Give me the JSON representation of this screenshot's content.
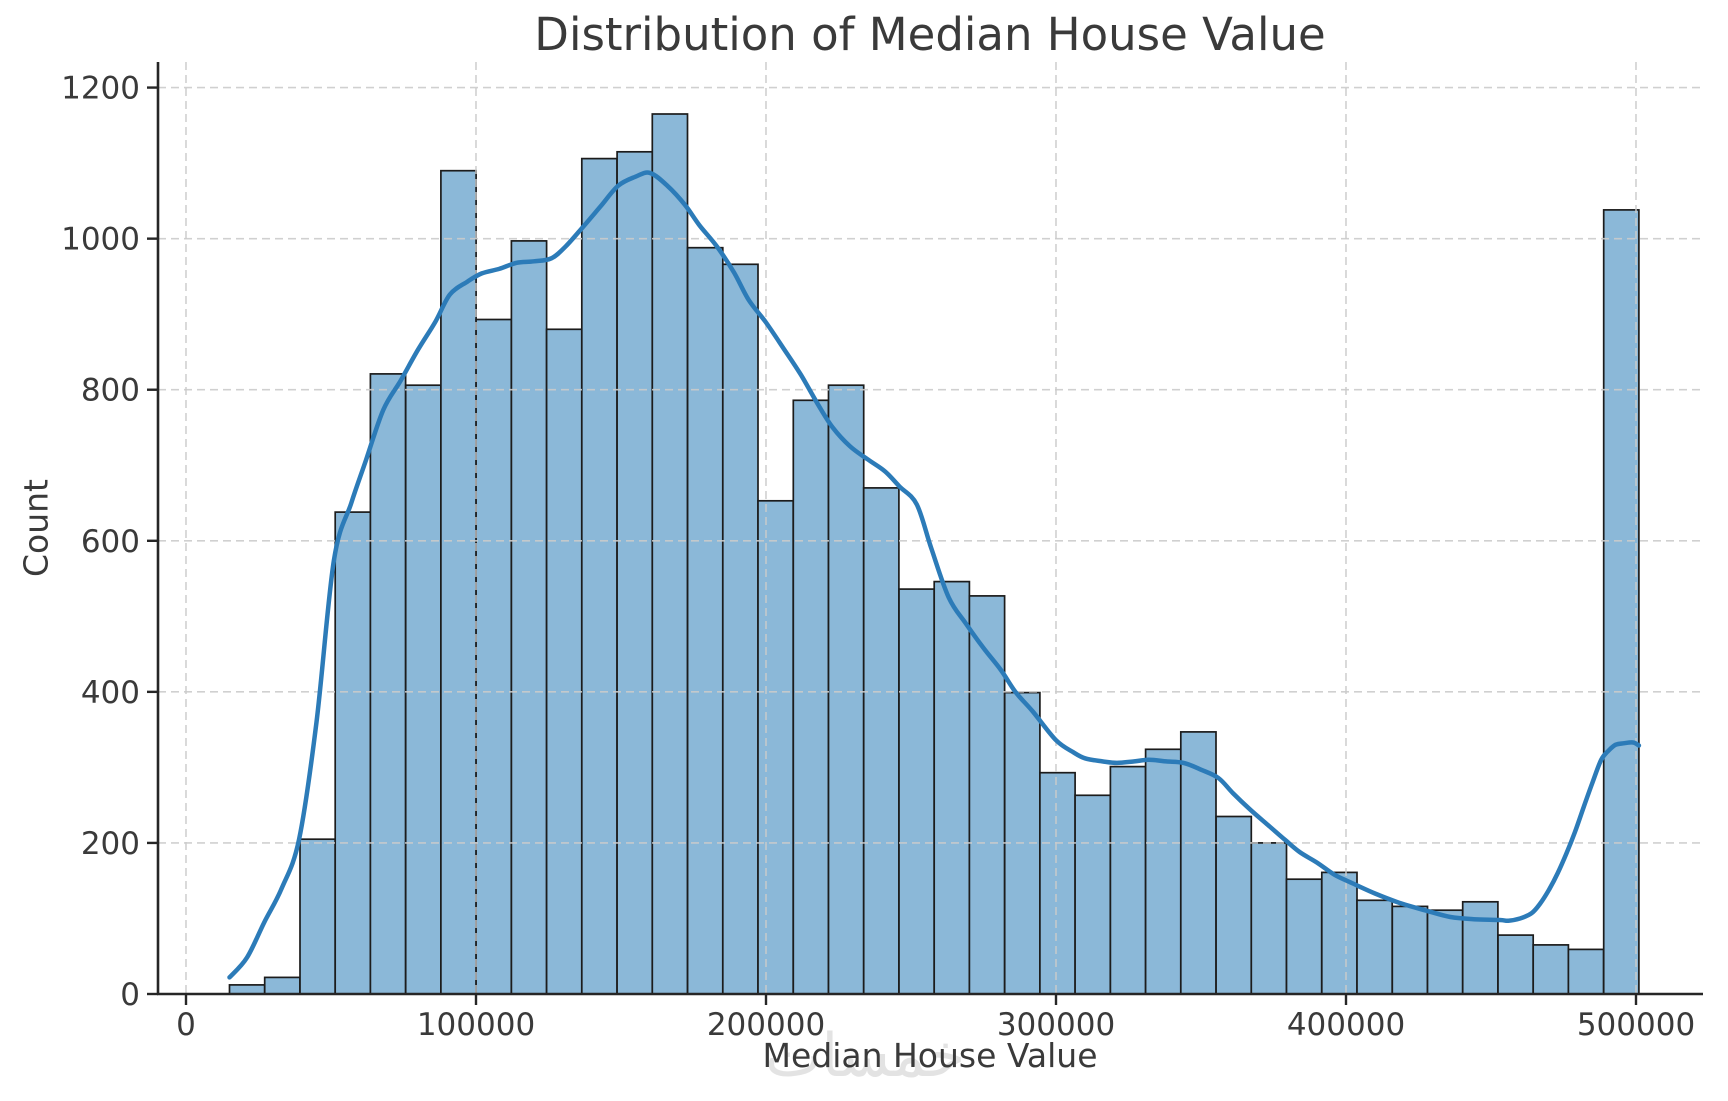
{
  "chart_data": {
    "type": "histogram",
    "title": "Distribution of Median House Value",
    "xlabel": "Median House Value",
    "ylabel": "Count",
    "x_tick_labels": [
      "0",
      "100000",
      "200000",
      "300000",
      "400000",
      "500000"
    ],
    "x_tick_values": [
      0,
      100000,
      200000,
      300000,
      400000,
      500000
    ],
    "y_tick_labels": [
      "0",
      "200",
      "400",
      "600",
      "800",
      "1000",
      "1200"
    ],
    "y_tick_values": [
      0,
      200,
      400,
      600,
      800,
      1000,
      1200
    ],
    "xlim": [
      -9655,
      523100
    ],
    "ylim": [
      0,
      1234
    ],
    "grid": true,
    "legend": false,
    "bin_start": 15000,
    "bin_width": 12150,
    "counts": [
      12,
      22,
      205,
      638,
      821,
      806,
      1090,
      893,
      997,
      880,
      1106,
      1115,
      1165,
      988,
      966,
      653,
      786,
      806,
      670,
      536,
      546,
      527,
      399,
      293,
      263,
      301,
      324,
      347,
      235,
      200,
      152,
      161,
      124,
      116,
      111,
      122,
      78,
      65,
      59,
      1038
    ],
    "kde_series": {
      "name": "kde-density-curve",
      "points": [
        [
          15000,
          22
        ],
        [
          21000,
          48
        ],
        [
          27000,
          95
        ],
        [
          33000,
          140
        ],
        [
          39000,
          205
        ],
        [
          45000,
          360
        ],
        [
          51000,
          574
        ],
        [
          57000,
          650
        ],
        [
          62000,
          706
        ],
        [
          68000,
          773
        ],
        [
          74000,
          812
        ],
        [
          80000,
          853
        ],
        [
          86000,
          890
        ],
        [
          91000,
          926
        ],
        [
          97000,
          943
        ],
        [
          102000,
          954
        ],
        [
          108000,
          960
        ],
        [
          114000,
          968
        ],
        [
          120000,
          970
        ],
        [
          126000,
          974
        ],
        [
          131000,
          990
        ],
        [
          137000,
          1016
        ],
        [
          143000,
          1043
        ],
        [
          149000,
          1070
        ],
        [
          155000,
          1082
        ],
        [
          160000,
          1087
        ],
        [
          166000,
          1070
        ],
        [
          172000,
          1045
        ],
        [
          177000,
          1018
        ],
        [
          183000,
          990
        ],
        [
          189000,
          955
        ],
        [
          194000,
          919
        ],
        [
          200000,
          889
        ],
        [
          206000,
          855
        ],
        [
          212000,
          820
        ],
        [
          218000,
          780
        ],
        [
          223000,
          750
        ],
        [
          229000,
          725
        ],
        [
          235000,
          708
        ],
        [
          241000,
          692
        ],
        [
          246000,
          672
        ],
        [
          252000,
          648
        ],
        [
          257000,
          590
        ],
        [
          263000,
          525
        ],
        [
          269000,
          490
        ],
        [
          275000,
          458
        ],
        [
          281000,
          429
        ],
        [
          286000,
          400
        ],
        [
          292000,
          374
        ],
        [
          300000,
          336
        ],
        [
          306000,
          320
        ],
        [
          310000,
          312
        ],
        [
          316000,
          308
        ],
        [
          321000,
          306
        ],
        [
          327000,
          308
        ],
        [
          332000,
          310
        ],
        [
          338000,
          308
        ],
        [
          344000,
          306
        ],
        [
          350000,
          297
        ],
        [
          356000,
          286
        ],
        [
          361000,
          266
        ],
        [
          367000,
          244
        ],
        [
          373000,
          224
        ],
        [
          379000,
          204
        ],
        [
          384000,
          188
        ],
        [
          390000,
          174
        ],
        [
          396000,
          158
        ],
        [
          402000,
          147
        ],
        [
          410000,
          133
        ],
        [
          419000,
          120
        ],
        [
          428000,
          110
        ],
        [
          436000,
          102
        ],
        [
          444000,
          99
        ],
        [
          453000,
          98
        ],
        [
          456000,
          97
        ],
        [
          460000,
          100
        ],
        [
          464000,
          107
        ],
        [
          467000,
          120
        ],
        [
          470000,
          138
        ],
        [
          473000,
          160
        ],
        [
          476000,
          186
        ],
        [
          479000,
          215
        ],
        [
          482000,
          248
        ],
        [
          485000,
          280
        ],
        [
          488000,
          310
        ],
        [
          490500,
          322
        ],
        [
          493000,
          330
        ],
        [
          496000,
          332
        ],
        [
          499000,
          333
        ],
        [
          501000,
          329
        ]
      ]
    }
  },
  "colors": {
    "bar_fill": "#8bb8d8",
    "bar_edge": "#1c1c1c",
    "kde_line": "#2c7bb8",
    "grid": "#cbcbcb",
    "spine": "#262626",
    "tick_text": "#3a3a3a",
    "background": "#ffffff"
  },
  "watermark": {
    "text": "خمسات"
  }
}
